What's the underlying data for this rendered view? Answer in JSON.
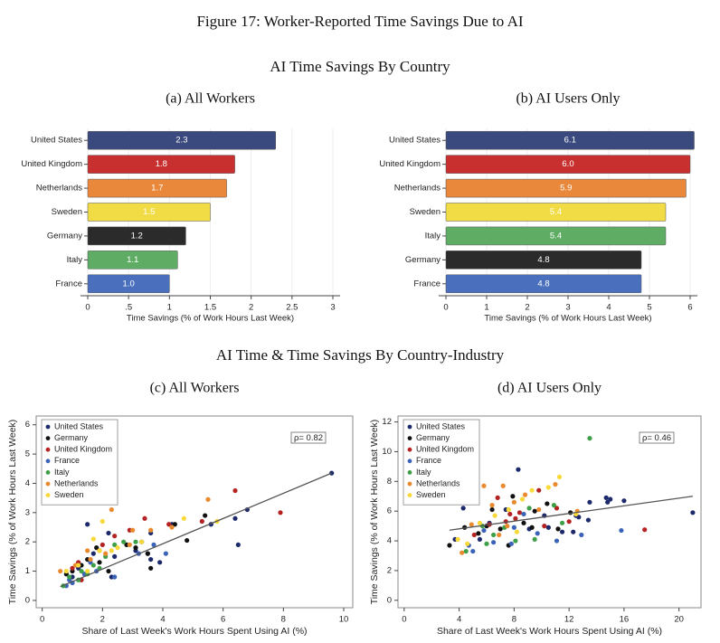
{
  "figure_title": "Figure 17: Worker-Reported Time Savings Due to AI",
  "sections": [
    "AI Time Savings By Country",
    "AI Time & Time Savings By Country-Industry"
  ],
  "chart_data": [
    {
      "type": "barh",
      "subtitle": "(a) All Workers",
      "categories": [
        "United States",
        "United Kingdom",
        "Netherlands",
        "Sweden",
        "Germany",
        "Italy",
        "France"
      ],
      "values": [
        2.3,
        1.8,
        1.7,
        1.5,
        1.2,
        1.1,
        1.0
      ],
      "value_labels": [
        "2.3",
        "1.8",
        "1.7",
        "1.5",
        "1.2",
        "1.1",
        "1.0"
      ],
      "colors": [
        "#3b4a7e",
        "#c8302f",
        "#e9873a",
        "#f2dc45",
        "#2b2b2b",
        "#5fad64",
        "#4a6fbd"
      ],
      "xlim": [
        0,
        3
      ],
      "xticks": [
        0,
        {
          "value": 0.5,
          "label": ".5"
        },
        1,
        1.5,
        2,
        2.5,
        3
      ],
      "xlabel": "Time Savings (% of Work Hours Last Week)",
      "grid": true
    },
    {
      "type": "barh",
      "subtitle": "(b) AI Users Only",
      "categories": [
        "United States",
        "United Kingdom",
        "Netherlands",
        "Sweden",
        "Italy",
        "Germany",
        "France"
      ],
      "values": [
        6.1,
        6.0,
        5.9,
        5.4,
        5.4,
        4.8,
        4.8
      ],
      "value_labels": [
        "6.1",
        "6.0",
        "5.9",
        "5.4",
        "5.4",
        "4.8",
        "4.8"
      ],
      "colors": [
        "#3b4a7e",
        "#c8302f",
        "#e9873a",
        "#f2dc45",
        "#5fad64",
        "#2b2b2b",
        "#4a6fbd"
      ],
      "xlim": [
        0,
        6
      ],
      "xticks": [
        0,
        1,
        2,
        3,
        4,
        5,
        6
      ],
      "xlabel": "Time Savings (% of Work Hours Last Week)",
      "grid": true
    },
    {
      "type": "scatter",
      "subtitle": "(c) All Workers",
      "xlabel": "Share of Last Week's Work Hours Spent Using AI (%)",
      "ylabel": "Time Savings (% of Work Hours Last Week)",
      "xlim": [
        -0.2,
        10.3
      ],
      "xticks": [
        0,
        2,
        4,
        6,
        8,
        10
      ],
      "ylim": [
        -0.25,
        6.3
      ],
      "yticks": [
        0,
        1,
        2,
        3,
        4,
        5,
        6
      ],
      "annotation": "ρ= 0.82",
      "fit": {
        "x": [
          0.6,
          9.6
        ],
        "y": [
          0.47,
          4.35
        ]
      },
      "series": [
        {
          "name": "United States",
          "color": "#1c2a6b",
          "x": [
            9.6,
            6.5,
            6.4,
            6.8,
            5.6,
            4.3,
            3.6,
            3.3,
            1.5,
            2.2,
            3.9,
            3.6,
            2.4,
            2.3,
            1.7,
            1.2,
            1.0,
            3.1,
            3.5
          ],
          "y": [
            4.35,
            1.9,
            2.8,
            3.1,
            2.6,
            2.6,
            2.3,
            2.0,
            2.6,
            2.3,
            1.3,
            1.4,
            1.5,
            0.8,
            1.6,
            1.1,
            0.8,
            1.7,
            1.6
          ]
        },
        {
          "name": "Germany",
          "color": "#111111",
          "x": [
            5.4,
            4.4,
            4.8,
            3.5,
            3.1,
            2.8,
            1.9,
            1.5,
            1.3,
            1.0,
            0.8,
            2.2,
            1.8,
            3.6
          ],
          "y": [
            2.9,
            2.6,
            2.05,
            1.6,
            1.8,
            1.9,
            1.3,
            1.4,
            1.2,
            1.0,
            0.9,
            1.0,
            1.8,
            1.1
          ]
        },
        {
          "name": "United Kingdom",
          "color": "#b52222",
          "x": [
            7.9,
            6.4,
            5.3,
            4.2,
            3.4,
            2.9,
            2.4,
            1.9,
            1.2,
            1.0,
            1.3,
            2.0
          ],
          "y": [
            3.0,
            3.75,
            2.7,
            2.6,
            2.8,
            2.4,
            2.2,
            1.7,
            1.3,
            1.1,
            0.7,
            1.9
          ]
        },
        {
          "name": "France",
          "color": "#3b63b7",
          "x": [
            4.1,
            3.7,
            2.4,
            1.8,
            1.4,
            1.0,
            0.8,
            3.2,
            1.6,
            0.9
          ],
          "y": [
            1.6,
            1.9,
            0.8,
            1.0,
            0.9,
            0.6,
            0.5,
            1.6,
            1.3,
            0.7
          ]
        },
        {
          "name": "Italy",
          "color": "#3f9f48",
          "x": [
            2.4,
            2.1,
            1.7,
            1.5,
            1.2,
            0.9,
            0.7,
            1.9,
            2.7,
            1.3,
            3.1
          ],
          "y": [
            1.9,
            1.5,
            1.2,
            0.9,
            0.7,
            0.8,
            0.5,
            1.1,
            2.0,
            1.0,
            2.0
          ]
        },
        {
          "name": "Netherlands",
          "color": "#e98a2f",
          "x": [
            5.5,
            4.3,
            3.6,
            2.3,
            2.9,
            2.1,
            1.6,
            1.1,
            0.6,
            1.5,
            3.0
          ],
          "y": [
            3.45,
            2.5,
            2.4,
            3.1,
            1.9,
            1.6,
            1.4,
            1.2,
            1.0,
            1.7,
            2.4
          ]
        },
        {
          "name": "Sweden",
          "color": "#f7d939",
          "x": [
            5.8,
            4.7,
            3.3,
            2.5,
            2.0,
            1.7,
            1.9,
            1.2,
            0.8,
            1.5,
            2.3
          ],
          "y": [
            2.7,
            2.8,
            2.0,
            1.8,
            2.7,
            2.1,
            1.7,
            1.2,
            1.0,
            1.0,
            1.7
          ]
        }
      ]
    },
    {
      "type": "scatter",
      "subtitle": "(d) AI Users Only",
      "xlabel": "Share of Last Week's Work Hours Spent Using AI (%)",
      "ylabel": "Time Savings (% of Work Hours Last Week)",
      "xlim": [
        -0.45,
        21.6
      ],
      "xticks": [
        0,
        4,
        8,
        12,
        16,
        20
      ],
      "ylim": [
        -0.5,
        12.4
      ],
      "yticks": [
        0,
        2,
        4,
        6,
        8,
        10,
        12
      ],
      "annotation": "ρ= 0.46",
      "fit": {
        "x": [
          3.3,
          21
        ],
        "y": [
          4.72,
          7.0
        ]
      },
      "series": [
        {
          "name": "United States",
          "color": "#1c2a6b",
          "x": [
            21,
            16,
            15,
            14.7,
            14.8,
            13.5,
            12.5,
            12.7,
            11.5,
            10.5,
            9.1,
            8.3,
            7.4,
            6.2,
            4.3,
            3.7,
            5.5,
            13.4,
            12.3,
            10.2
          ],
          "y": [
            5.9,
            6.7,
            6.8,
            6.9,
            6.6,
            6.6,
            5.7,
            5.6,
            4.6,
            4.9,
            4.8,
            8.8,
            6.1,
            5.2,
            6.2,
            4.1,
            4.1,
            5.4,
            4.6,
            5.7
          ]
        },
        {
          "name": "Germany",
          "color": "#111111",
          "x": [
            11.2,
            9.5,
            8.7,
            7.9,
            7.0,
            6.4,
            6.0,
            5.4,
            4.4,
            3.3,
            10.4,
            12.1,
            7.6,
            9.3
          ],
          "y": [
            4.8,
            6.0,
            5.2,
            7.0,
            4.8,
            6.1,
            5.0,
            4.5,
            4.9,
            3.7,
            6.5,
            5.9,
            3.7,
            4.9
          ]
        },
        {
          "name": "United Kingdom",
          "color": "#b52222",
          "x": [
            17.5,
            11.1,
            10.2,
            8.4,
            8.1,
            7.4,
            6.8,
            6.2,
            5.1,
            12.0,
            9.8,
            7.7
          ],
          "y": [
            4.75,
            6.2,
            5.0,
            5.9,
            5.5,
            5.3,
            6.9,
            5.1,
            4.4,
            5.3,
            7.4,
            5.8
          ]
        },
        {
          "name": "France",
          "color": "#3b63b7",
          "x": [
            15.8,
            11.1,
            9.7,
            8.7,
            7.8,
            6.5,
            5.8,
            4.7,
            12.9,
            8.0,
            5.0
          ],
          "y": [
            4.7,
            4.0,
            4.5,
            5.8,
            3.8,
            3.9,
            4.7,
            3.7,
            4.4,
            4.9,
            3.3
          ]
        },
        {
          "name": "Italy",
          "color": "#3f9f48",
          "x": [
            13.5,
            10.9,
            9.1,
            8.1,
            7.3,
            6.5,
            5.7,
            4.5,
            9.5,
            6.0,
            11.5
          ],
          "y": [
            10.9,
            6.4,
            6.2,
            4.0,
            4.9,
            4.4,
            5.0,
            3.3,
            4.1,
            3.8,
            5.2
          ]
        },
        {
          "name": "Netherlands",
          "color": "#e98a2f",
          "x": [
            11.0,
            9.8,
            8.8,
            8.0,
            7.2,
            6.4,
            5.8,
            5.2,
            4.9,
            4.2,
            7.5,
            12.6,
            6.9
          ],
          "y": [
            7.8,
            6.1,
            7.1,
            6.6,
            7.7,
            6.4,
            7.7,
            7.6,
            5.1,
            3.2,
            5.0,
            6.0,
            4.4
          ]
        },
        {
          "name": "Sweden",
          "color": "#f7d939",
          "x": [
            11.3,
            10.5,
            9.3,
            8.6,
            7.6,
            6.6,
            5.5,
            4.6,
            3.9,
            12.5,
            8.2
          ],
          "y": [
            8.3,
            7.6,
            7.4,
            6.8,
            6.1,
            5.7,
            5.2,
            3.8,
            4.1,
            5.8,
            4.6
          ]
        }
      ]
    }
  ]
}
